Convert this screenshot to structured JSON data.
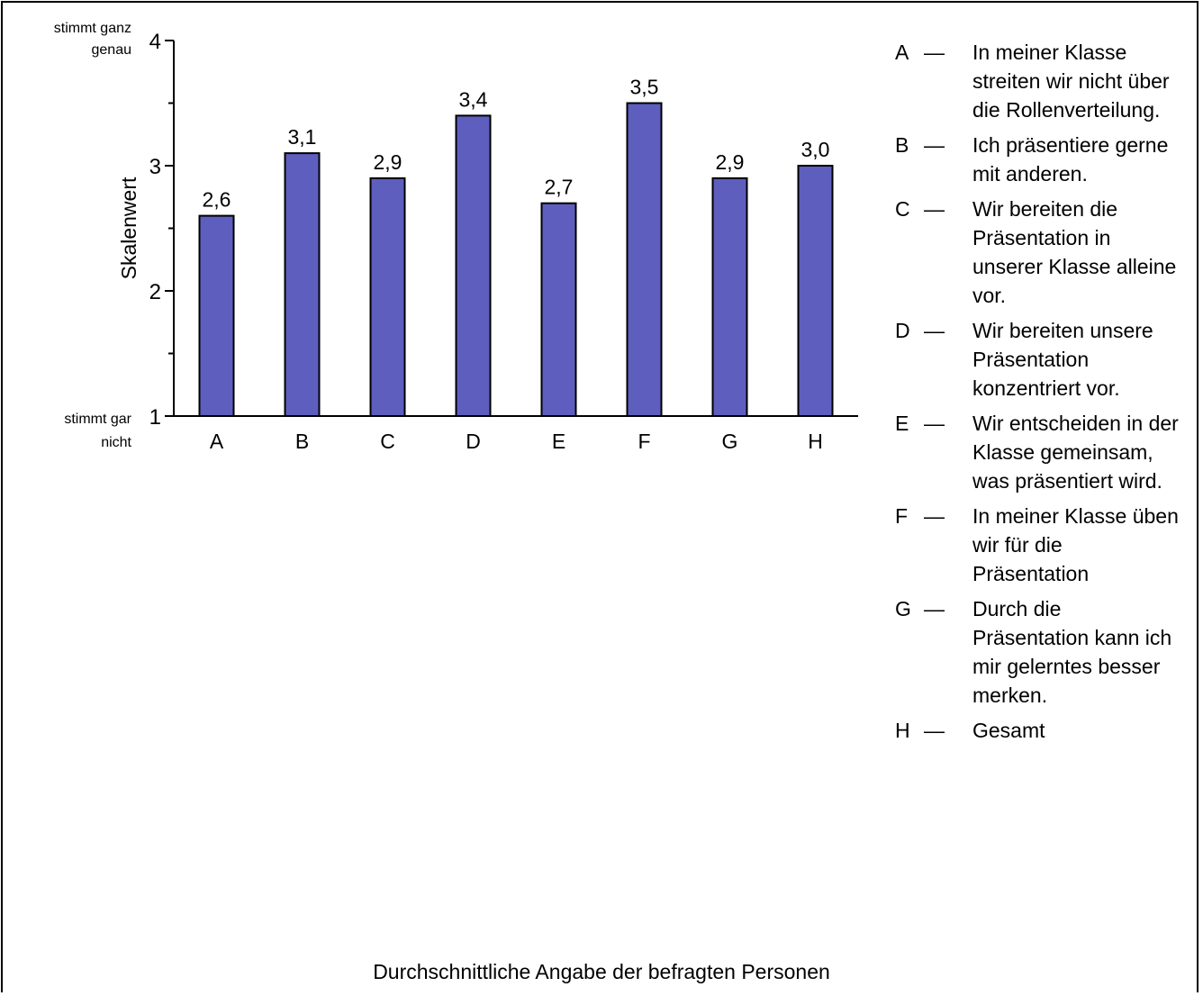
{
  "chart_data": {
    "type": "bar",
    "categories": [
      "A",
      "B",
      "C",
      "D",
      "E",
      "F",
      "G",
      "H"
    ],
    "values": [
      2.6,
      3.1,
      2.9,
      3.4,
      2.7,
      3.5,
      2.9,
      3.0
    ],
    "data_labels": [
      "2,6",
      "3,1",
      "2,9",
      "3,4",
      "2,7",
      "3,5",
      "2,9",
      "3,0"
    ],
    "ylabel": "Skalenwert",
    "xlabel": "Durchschnittliche Angabe der befragten Personen",
    "ylim": [
      1,
      4
    ],
    "yticks": [
      "1",
      "2",
      "3",
      "4"
    ],
    "y_top_anchor": "stimmt ganz genau",
    "y_bottom_anchor": "stimmt gar nicht",
    "bar_color": "#5e5ebf",
    "legend_placement": "right",
    "legend": [
      {
        "key": "A",
        "text": "In meiner Klasse streiten wir nicht über die Rollenverteilung."
      },
      {
        "key": "B",
        "text": "Ich präsentiere gerne mit anderen."
      },
      {
        "key": "C",
        "text": "Wir bereiten die Präsentation in unserer Klasse alleine vor."
      },
      {
        "key": "D",
        "text": "Wir bereiten unsere Präsentation konzentriert vor."
      },
      {
        "key": "E",
        "text": "Wir entscheiden in der Klasse gemeinsam, was präsentiert wird."
      },
      {
        "key": "F",
        "text": "In meiner Klasse üben wir für die Präsentation"
      },
      {
        "key": "G",
        "text": "Durch die Präsentation kann ich mir gelerntes besser merken."
      },
      {
        "key": "H",
        "text": "Gesamt"
      }
    ],
    "legend_separator": "—"
  }
}
